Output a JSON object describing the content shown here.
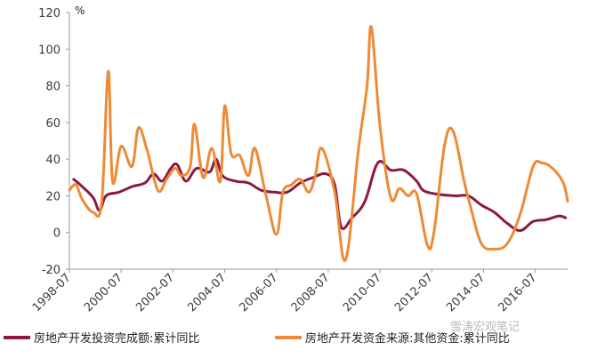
{
  "chart_data": {
    "type": "line",
    "unit_label": "%",
    "ylim": [
      -20,
      120
    ],
    "y_ticks": [
      -20,
      0,
      20,
      40,
      60,
      80,
      100,
      120
    ],
    "xlim": [
      "1998-07",
      "2017-10"
    ],
    "x_tick_labels": [
      "1998-07",
      "2000-07",
      "2002-07",
      "2004-07",
      "2006-07",
      "2008-07",
      "2010-07",
      "2012-07",
      "2014-07",
      "2016-07"
    ],
    "grid": false,
    "legend_position": "bottom",
    "watermark": "雪涛宏观笔记",
    "colors": {
      "series1": "#8b1a3f",
      "series2": "#ee8a35"
    },
    "series": [
      {
        "name": "房地产开发投资完成额:累计同比",
        "points": [
          [
            "1998-09",
            29
          ],
          [
            "1999-01",
            25
          ],
          [
            "1999-06",
            19
          ],
          [
            "1999-09",
            12
          ],
          [
            "1999-12",
            20
          ],
          [
            "2000-06",
            22
          ],
          [
            "2000-12",
            25
          ],
          [
            "2001-06",
            27
          ],
          [
            "2001-10",
            32
          ],
          [
            "2002-02",
            28
          ],
          [
            "2002-06",
            35
          ],
          [
            "2002-09",
            37
          ],
          [
            "2003-01",
            28
          ],
          [
            "2003-06",
            35
          ],
          [
            "2003-12",
            33
          ],
          [
            "2004-03",
            40
          ],
          [
            "2004-06",
            31
          ],
          [
            "2004-12",
            28
          ],
          [
            "2005-06",
            27
          ],
          [
            "2005-12",
            23
          ],
          [
            "2006-06",
            22
          ],
          [
            "2006-12",
            22
          ],
          [
            "2007-06",
            27
          ],
          [
            "2007-12",
            30
          ],
          [
            "2008-06",
            32
          ],
          [
            "2008-10",
            26
          ],
          [
            "2009-01",
            3
          ],
          [
            "2009-06",
            8
          ],
          [
            "2009-12",
            17
          ],
          [
            "2010-06",
            38
          ],
          [
            "2010-12",
            34
          ],
          [
            "2011-06",
            34
          ],
          [
            "2011-12",
            28
          ],
          [
            "2012-03",
            23
          ],
          [
            "2012-09",
            21
          ],
          [
            "2013-06",
            20
          ],
          [
            "2013-12",
            20
          ],
          [
            "2014-06",
            15
          ],
          [
            "2014-12",
            11
          ],
          [
            "2015-06",
            5
          ],
          [
            "2015-12",
            1
          ],
          [
            "2016-06",
            6
          ],
          [
            "2016-12",
            7
          ],
          [
            "2017-06",
            9
          ],
          [
            "2017-09",
            8
          ]
        ]
      },
      {
        "name": "房地产开发资金来源:其他资金:累计同比",
        "points": [
          [
            "1998-07",
            23
          ],
          [
            "1998-10",
            26
          ],
          [
            "1999-01",
            18
          ],
          [
            "1999-06",
            11
          ],
          [
            "1999-10",
            17
          ],
          [
            "2000-01",
            88
          ],
          [
            "2000-03",
            28
          ],
          [
            "2000-07",
            47
          ],
          [
            "2000-12",
            36
          ],
          [
            "2001-03",
            57
          ],
          [
            "2001-07",
            45
          ],
          [
            "2001-12",
            23
          ],
          [
            "2002-04",
            29
          ],
          [
            "2002-08",
            35
          ],
          [
            "2002-11",
            31
          ],
          [
            "2003-03",
            36
          ],
          [
            "2003-05",
            59
          ],
          [
            "2003-09",
            30
          ],
          [
            "2004-01",
            46
          ],
          [
            "2004-05",
            28
          ],
          [
            "2004-07",
            69
          ],
          [
            "2004-10",
            43
          ],
          [
            "2005-02",
            42
          ],
          [
            "2005-06",
            31
          ],
          [
            "2005-09",
            46
          ],
          [
            "2006-02",
            21
          ],
          [
            "2006-07",
            -1
          ],
          [
            "2006-10",
            22
          ],
          [
            "2007-02",
            26
          ],
          [
            "2007-06",
            29
          ],
          [
            "2007-10",
            22
          ],
          [
            "2008-01",
            31
          ],
          [
            "2008-04",
            46
          ],
          [
            "2008-10",
            22
          ],
          [
            "2009-03",
            -15
          ],
          [
            "2009-09",
            45
          ],
          [
            "2010-01",
            80
          ],
          [
            "2010-03",
            112
          ],
          [
            "2010-07",
            58
          ],
          [
            "2010-12",
            19
          ],
          [
            "2011-04",
            24
          ],
          [
            "2011-08",
            20
          ],
          [
            "2011-12",
            21
          ],
          [
            "2012-05",
            -7
          ],
          [
            "2012-08",
            0
          ],
          [
            "2013-01",
            48
          ],
          [
            "2013-05",
            55
          ],
          [
            "2013-10",
            28
          ],
          [
            "2014-01",
            14
          ],
          [
            "2014-06",
            -6
          ],
          [
            "2014-12",
            -9
          ],
          [
            "2015-06",
            -6
          ],
          [
            "2015-12",
            10
          ],
          [
            "2016-06",
            36
          ],
          [
            "2016-10",
            38
          ],
          [
            "2017-03",
            35
          ],
          [
            "2017-08",
            27
          ],
          [
            "2017-10",
            17
          ]
        ]
      }
    ]
  }
}
